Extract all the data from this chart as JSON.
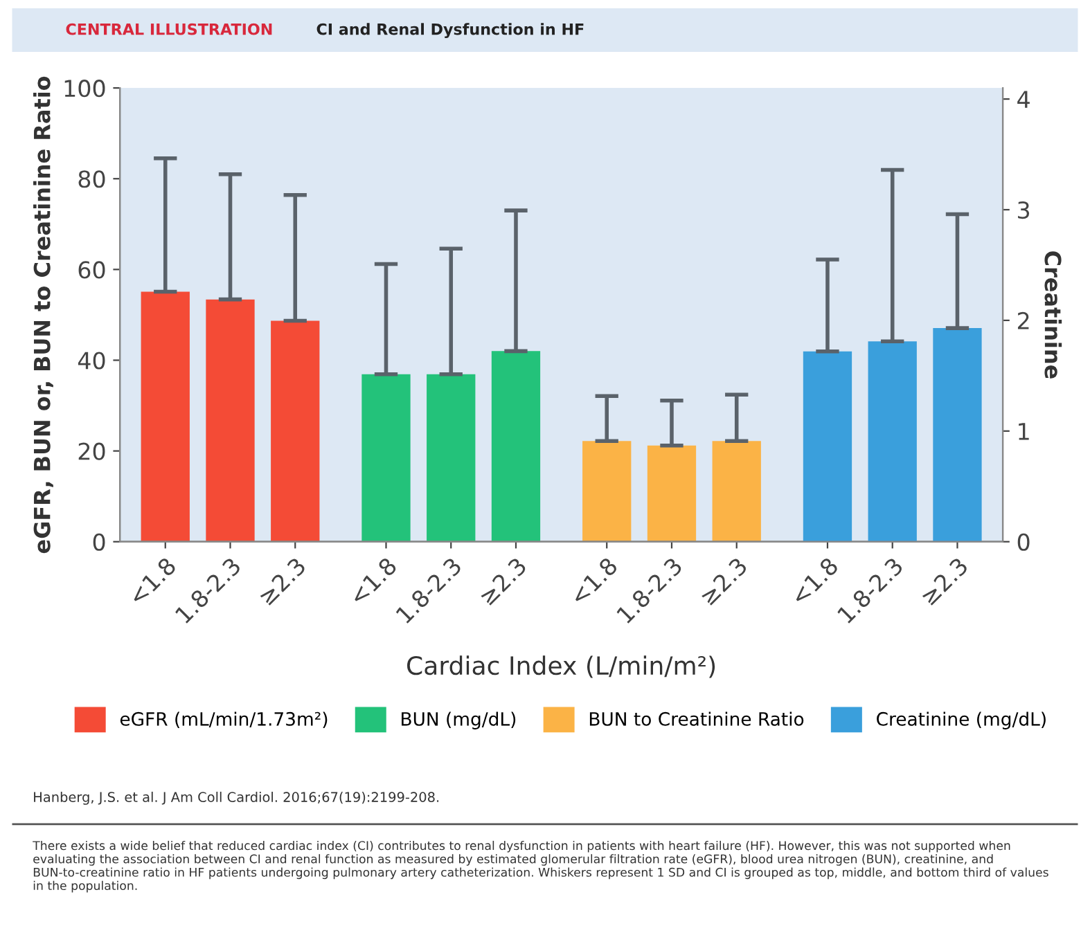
{
  "chart_data": {
    "type": "bar",
    "title": "CI and Renal Dysfunction in HF",
    "xlabel": "Cardiac Index (L/min/m²)",
    "ylabel": "eGFR, BUN or, BUN to Creatinine Ratio",
    "y2label": "Creatinine",
    "categories": [
      "<1.8",
      "1.8-2.3",
      "≥2.3",
      "<1.8",
      "1.8-2.3",
      "≥2.3",
      "<1.8",
      "1.8-2.3",
      "≥2.3",
      "<1.8",
      "1.8-2.3",
      "≥2.3"
    ],
    "series": [
      {
        "name": "eGFR (mL/min/1.73m²)",
        "color": "#f44b36",
        "values": [
          55.1,
          53.4,
          48.7,
          null,
          null,
          null,
          null,
          null,
          null,
          null,
          null,
          null
        ],
        "errors": [
          [
            55.1,
            84.5
          ],
          [
            53.4,
            81
          ],
          [
            48.7,
            76.4
          ],
          null,
          null,
          null,
          null,
          null,
          null,
          null,
          null,
          null
        ]
      },
      {
        "name": "BUN (mg/dL)",
        "color": "#23c27a",
        "values": [
          null,
          null,
          null,
          36.9,
          36.9,
          42,
          null,
          null,
          null,
          null,
          null,
          null
        ],
        "errors": [
          null,
          null,
          null,
          [
            36.9,
            61.2
          ],
          [
            36.9,
            64.6
          ],
          [
            42,
            73
          ],
          null,
          null,
          null,
          null,
          null,
          null
        ]
      },
      {
        "name": "BUN to Creatinine Ratio",
        "color": "#fbb346",
        "values": [
          null,
          null,
          null,
          null,
          null,
          null,
          22.2,
          21.2,
          22.2,
          null,
          null,
          null
        ],
        "errors": [
          null,
          null,
          null,
          null,
          null,
          null,
          [
            22.2,
            32.1
          ],
          [
            21.2,
            31.1
          ],
          [
            22.2,
            32.4
          ],
          null,
          null,
          null
        ]
      },
      {
        "name": "Creatinine (mg/dL)",
        "color": "#3a9fdc",
        "axis": "y2",
        "values": [
          null,
          null,
          null,
          null,
          null,
          null,
          null,
          null,
          null,
          1.72,
          1.81,
          1.93
        ],
        "errors": [
          null,
          null,
          null,
          null,
          null,
          null,
          null,
          null,
          null,
          [
            1.72,
            2.55
          ],
          [
            1.81,
            3.36
          ],
          [
            1.93,
            2.96
          ]
        ]
      }
    ],
    "ylim": [
      0,
      100
    ],
    "yticks": [
      0,
      20,
      40,
      60,
      80,
      100
    ],
    "y2lim": [
      0,
      4.1
    ],
    "y2ticks": [
      0,
      1,
      2,
      3,
      4
    ],
    "grid": false,
    "legend": "bottom",
    "annotations": [
      "CENTRAL ILLUSTRATION",
      "Hanberg, J.S. et al. J Am Coll Cardiol. 2016;67(19):2199-208.",
      "There exists a wide belief that reduced cardiac index (CI) contributes to renal dysfunction in patients with heart failure (HF). However, this was not supported when evaluating the association between CI and renal function as measured by estimated glomerular filtration rate (eGFR), blood urea nitrogen (BUN), creatinine, and BUN-to-creatinine ratio in HF patients undergoing pulmonary artery catheterization. Whiskers represent 1 SD and CI is grouped as top, middle, and bottom third of values in the population."
    ]
  }
}
